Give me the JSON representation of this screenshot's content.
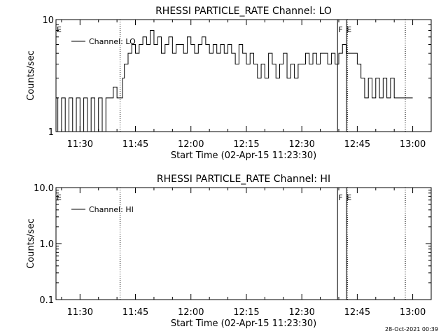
{
  "footer": {
    "timestamp": "28-Oct-2021 00:39"
  },
  "chart_data": [
    {
      "type": "line",
      "title": "RHESSI PARTICLE_RATE Channel: LO",
      "xlabel": "Start Time (02-Apr-15 11:23:30)",
      "ylabel": "Counts/sec",
      "yscale": "log",
      "xlim": [
        "11:23:30",
        "13:05:00"
      ],
      "ylim": [
        1,
        10
      ],
      "x_tick_labels": [
        "11:30",
        "11:45",
        "12:00",
        "12:15",
        "12:30",
        "12:45",
        "13:00"
      ],
      "y_tick_labels": [
        "1",
        "10"
      ],
      "legend": {
        "placement": "top-left",
        "entries": [
          "Channel: LO"
        ]
      },
      "flag_labels": [
        {
          "label": "E",
          "time": "11:23:30"
        },
        {
          "label": "F",
          "time": "12:39:30"
        },
        {
          "label": "E",
          "time": "12:41:45"
        }
      ],
      "vertical_lines": [
        {
          "time": "11:40:50",
          "style": "dotted"
        },
        {
          "time": "12:39:40",
          "style": "solid"
        },
        {
          "time": "12:42:05",
          "style": "solid"
        },
        {
          "time": "12:42:20",
          "style": "dotted"
        },
        {
          "time": "12:58:00",
          "style": "dotted"
        }
      ],
      "series": [
        {
          "x": [
            "11:23:30",
            "11:24:00",
            "11:25:00",
            "11:26:00",
            "11:27:00",
            "11:28:00",
            "11:29:00",
            "11:30:00",
            "11:31:00",
            "11:32:00",
            "11:33:00",
            "11:34:00",
            "11:35:00",
            "11:36:00",
            "11:37:00",
            "11:38:00",
            "11:39:00",
            "11:40:00",
            "11:41:00",
            "11:41:30",
            "11:42:00",
            "11:43:00",
            "11:44:00",
            "11:45:00",
            "11:46:00",
            "11:47:00",
            "11:48:00",
            "11:49:00",
            "11:50:00",
            "11:51:00",
            "11:52:00",
            "11:53:00",
            "11:54:00",
            "11:55:00",
            "11:56:00",
            "11:57:00",
            "11:58:00",
            "11:59:00",
            "12:00:00",
            "12:01:00",
            "12:02:00",
            "12:03:00",
            "12:04:00",
            "12:05:00",
            "12:06:00",
            "12:07:00",
            "12:08:00",
            "12:09:00",
            "12:10:00",
            "12:11:00",
            "12:12:00",
            "12:13:00",
            "12:14:00",
            "12:15:00",
            "12:16:00",
            "12:17:00",
            "12:18:00",
            "12:19:00",
            "12:20:00",
            "12:21:00",
            "12:22:00",
            "12:23:00",
            "12:24:00",
            "12:25:00",
            "12:26:00",
            "12:27:00",
            "12:28:00",
            "12:29:00",
            "12:30:00",
            "12:31:00",
            "12:32:00",
            "12:33:00",
            "12:34:00",
            "12:35:00",
            "12:36:00",
            "12:37:00",
            "12:38:00",
            "12:39:00",
            "12:40:00",
            "12:41:00",
            "12:42:00",
            "12:43:00",
            "12:44:00",
            "12:45:00",
            "12:46:00",
            "12:47:00",
            "12:48:00",
            "12:49:00",
            "12:50:00",
            "12:51:00",
            "12:52:00",
            "12:53:00",
            "12:54:00",
            "12:55:00",
            "12:56:00",
            "12:57:00",
            "12:58:00",
            "12:59:00"
          ],
          "values": [
            2,
            1,
            2,
            1,
            2,
            1,
            2,
            1,
            2,
            1,
            2,
            1,
            2,
            1,
            2,
            2,
            2.5,
            2,
            2,
            3,
            4,
            5,
            6,
            5,
            6,
            7,
            6,
            8,
            6,
            7,
            5,
            6,
            7,
            5,
            6,
            6,
            5,
            7,
            6,
            5,
            6,
            7,
            6,
            5,
            6,
            5,
            6,
            5,
            6,
            5,
            4,
            6,
            5,
            4,
            5,
            4,
            3,
            4,
            3,
            5,
            4,
            3,
            4,
            5,
            3,
            4,
            3,
            4,
            4,
            5,
            4,
            5,
            4,
            5,
            5,
            4,
            5,
            4,
            5,
            6,
            5,
            5,
            5,
            4,
            3,
            2,
            3,
            2,
            3,
            2,
            3,
            2,
            3,
            2,
            2,
            2,
            2,
            2
          ]
        }
      ]
    },
    {
      "type": "line",
      "title": "RHESSI PARTICLE_RATE Channel: HI",
      "xlabel": "Start Time (02-Apr-15 11:23:30)",
      "ylabel": "Counts/sec",
      "yscale": "log",
      "xlim": [
        "11:23:30",
        "13:05:00"
      ],
      "ylim": [
        0.1,
        10
      ],
      "x_tick_labels": [
        "11:30",
        "11:45",
        "12:00",
        "12:15",
        "12:30",
        "12:45",
        "13:00"
      ],
      "y_tick_labels": [
        "0.1",
        "1.0",
        "10.0"
      ],
      "legend": {
        "placement": "top-left",
        "entries": [
          "Channel: HI"
        ]
      },
      "flag_labels": [
        {
          "label": "E",
          "time": "11:23:30"
        },
        {
          "label": "F",
          "time": "12:39:30"
        },
        {
          "label": "E",
          "time": "12:41:45"
        }
      ],
      "vertical_lines": [
        {
          "time": "11:40:50",
          "style": "dotted"
        },
        {
          "time": "12:39:40",
          "style": "solid"
        },
        {
          "time": "12:42:05",
          "style": "solid"
        },
        {
          "time": "12:42:20",
          "style": "dotted"
        },
        {
          "time": "12:58:00",
          "style": "dotted"
        }
      ],
      "series": []
    }
  ]
}
